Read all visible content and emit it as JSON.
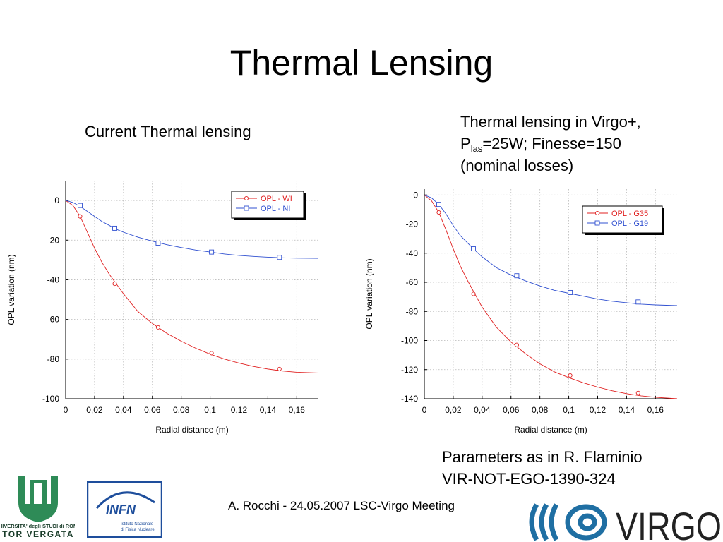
{
  "title": "Thermal Lensing",
  "left_heading": "Current Thermal lensing",
  "right_heading": {
    "line1": "Thermal lensing in Virgo+,",
    "line2_prefix": "P",
    "line2_sub": "las",
    "line2_rest": "=25W; Finesse=150",
    "line3": "(nominal losses)"
  },
  "params": {
    "line1": "Parameters as in R. Flaminio",
    "line2": "VIR-NOT-EGO-1390-324"
  },
  "footer": "A. Rocchi - 24.05.2007 LSC-Virgo Meeting",
  "logos": {
    "tor_vergata_line1": "UNIVERSITA' degli STUDI di ROMA",
    "tor_vergata_line2": "TOR VERGATA",
    "infn_name": "INFN",
    "infn_sub1": "Istituto Nazionale",
    "infn_sub2": "di Fisica Nucleare",
    "virgo_text": "VIRGO",
    "colors": {
      "infn_blue": "#1e4e9c",
      "tv_green": "#2e8b57",
      "virgo_blue": "#1f6fa3"
    }
  },
  "chart_data": [
    {
      "type": "line",
      "xlabel": "Radial distance (m)",
      "ylabel": "OPL variation (nm)",
      "xlim": [
        0,
        0.175
      ],
      "ylim": [
        -100,
        10
      ],
      "xticks": [
        0,
        0.02,
        0.04,
        0.06,
        0.08,
        0.1,
        0.12,
        0.14,
        0.16
      ],
      "xtick_labels": [
        "0",
        "0,02",
        "0,04",
        "0,06",
        "0,08",
        "0,1",
        "0,12",
        "0,14",
        "0,16"
      ],
      "yticks": [
        0,
        -20,
        -40,
        -60,
        -80,
        -100
      ],
      "ytick_labels": [
        "0",
        "-20",
        "-40",
        "-60",
        "-80",
        "-100"
      ],
      "grid": true,
      "legend_position": "top-right",
      "series": [
        {
          "name": "OPL - WI",
          "color": "#e02020",
          "marker": "circle",
          "x": [
            0,
            0.005,
            0.01,
            0.015,
            0.02,
            0.025,
            0.03,
            0.035,
            0.04,
            0.05,
            0.06,
            0.07,
            0.08,
            0.09,
            0.1,
            0.11,
            0.12,
            0.13,
            0.14,
            0.15,
            0.16,
            0.175
          ],
          "y": [
            0,
            -2.5,
            -8,
            -16,
            -24,
            -31,
            -37,
            -42,
            -47,
            -56,
            -62,
            -67,
            -71,
            -74.5,
            -77.5,
            -80,
            -82,
            -83.7,
            -85,
            -86,
            -86.6,
            -87
          ],
          "markers_x": [
            0.01,
            0.034,
            0.064,
            0.101,
            0.148
          ],
          "markers_y": [
            -8,
            -42,
            -64,
            -77,
            -85
          ]
        },
        {
          "name": "OPL - NI",
          "color": "#3050d0",
          "marker": "square",
          "x": [
            0,
            0.005,
            0.01,
            0.015,
            0.02,
            0.025,
            0.03,
            0.035,
            0.04,
            0.05,
            0.06,
            0.07,
            0.08,
            0.09,
            0.1,
            0.11,
            0.12,
            0.13,
            0.14,
            0.15,
            0.16,
            0.175
          ],
          "y": [
            0,
            -1,
            -3,
            -5.5,
            -8,
            -10.5,
            -12.5,
            -14.5,
            -16,
            -18.5,
            -20.5,
            -22.3,
            -23.7,
            -25,
            -26,
            -27,
            -27.7,
            -28.2,
            -28.6,
            -28.9,
            -29.1,
            -29.2
          ],
          "markers_x": [
            0.01,
            0.034,
            0.064,
            0.101,
            0.148
          ],
          "markers_y": [
            -2.5,
            -14,
            -21.5,
            -26,
            -28.7
          ]
        }
      ]
    },
    {
      "type": "line",
      "xlabel": "Radial distance (m)",
      "ylabel": "OPL variation (nm)",
      "xlim": [
        0,
        0.175
      ],
      "ylim": [
        -140,
        4
      ],
      "xticks": [
        0,
        0.02,
        0.04,
        0.06,
        0.08,
        0.1,
        0.12,
        0.14,
        0.16
      ],
      "xtick_labels": [
        "0",
        "0,02",
        "0,04",
        "0,06",
        "0,08",
        "0,1",
        "0,12",
        "0,14",
        "0,16"
      ],
      "yticks": [
        0,
        -20,
        -40,
        -60,
        -80,
        -100,
        -120,
        -140
      ],
      "ytick_labels": [
        "0",
        "-20",
        "-40",
        "-60",
        "-80",
        "-100",
        "-120",
        "-140"
      ],
      "grid": true,
      "legend_position": "top-right",
      "series": [
        {
          "name": "OPL - G35",
          "color": "#e02020",
          "marker": "circle",
          "x": [
            0,
            0.005,
            0.01,
            0.015,
            0.02,
            0.025,
            0.03,
            0.035,
            0.04,
            0.05,
            0.06,
            0.07,
            0.08,
            0.09,
            0.1,
            0.11,
            0.12,
            0.13,
            0.14,
            0.15,
            0.16,
            0.175
          ],
          "y": [
            0,
            -4,
            -12,
            -24,
            -37,
            -49,
            -59,
            -68,
            -77,
            -91,
            -101,
            -109,
            -116,
            -121.5,
            -125.5,
            -129,
            -132,
            -134.5,
            -136.5,
            -138,
            -139,
            -140
          ],
          "markers_x": [
            0.01,
            0.034,
            0.064,
            0.101,
            0.148
          ],
          "markers_y": [
            -12,
            -68,
            -103,
            -124,
            -136
          ]
        },
        {
          "name": "OPL - G19",
          "color": "#3050d0",
          "marker": "square",
          "x": [
            0,
            0.005,
            0.01,
            0.015,
            0.02,
            0.025,
            0.03,
            0.035,
            0.04,
            0.05,
            0.06,
            0.07,
            0.08,
            0.09,
            0.1,
            0.11,
            0.12,
            0.13,
            0.14,
            0.15,
            0.16,
            0.175
          ],
          "y": [
            0,
            -2,
            -6.5,
            -13,
            -21,
            -28,
            -33,
            -38,
            -42.5,
            -50,
            -55,
            -59,
            -62.5,
            -65.5,
            -67.5,
            -69.5,
            -71.5,
            -73,
            -74,
            -75,
            -75.5,
            -76
          ],
          "markers_x": [
            0.01,
            0.034,
            0.064,
            0.101,
            0.148
          ],
          "markers_y": [
            -6.5,
            -37,
            -55.5,
            -67,
            -73.5
          ]
        }
      ]
    }
  ]
}
